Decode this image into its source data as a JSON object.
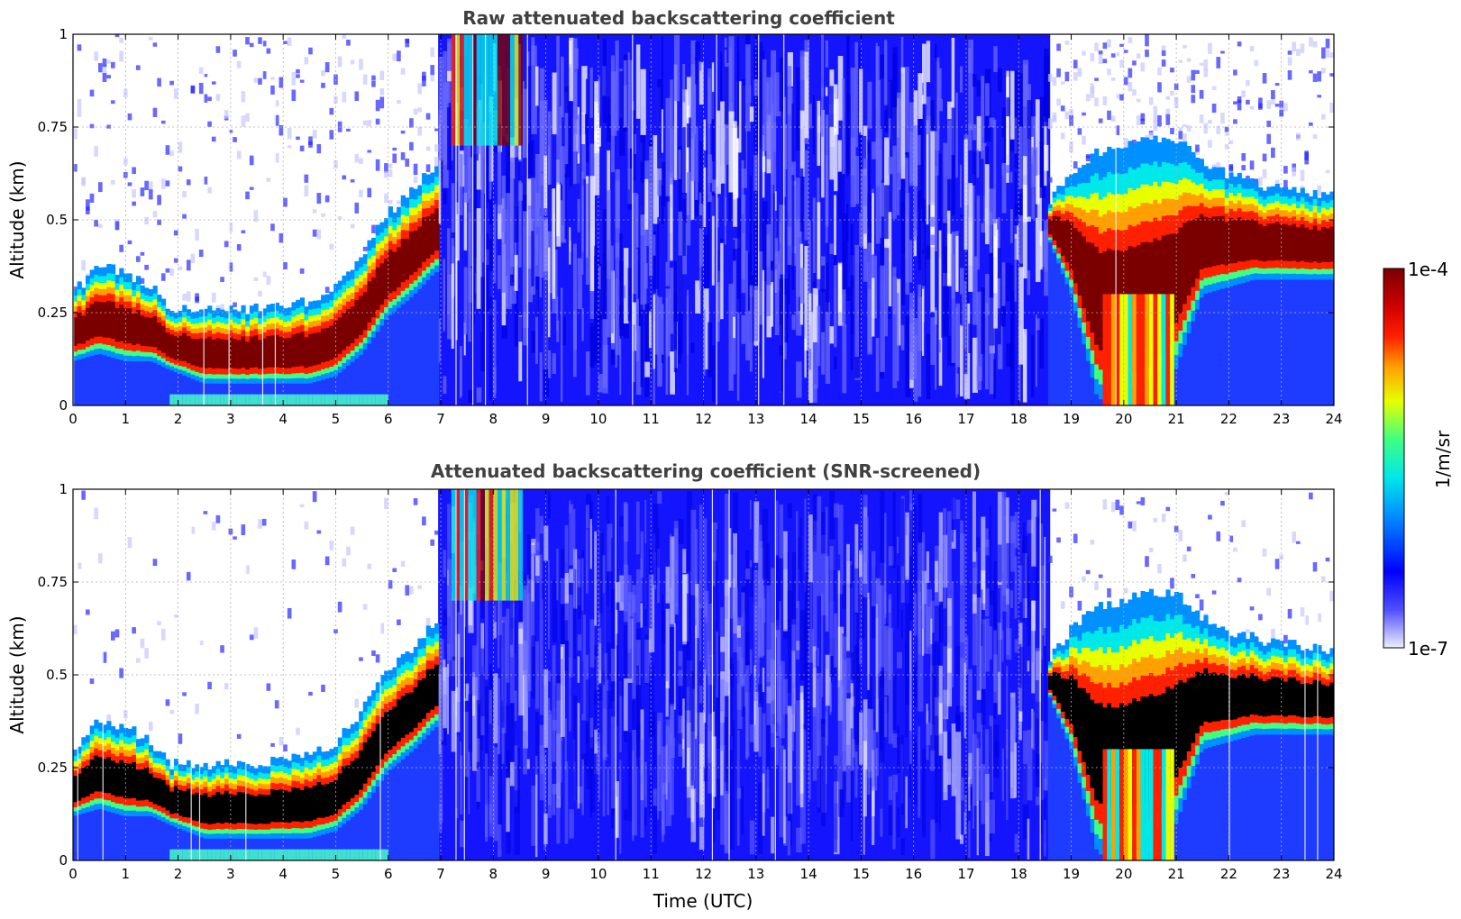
{
  "chart_data": [
    {
      "type": "heatmap",
      "title": "Raw attenuated backscattering coefficient",
      "xlabel": "",
      "ylabel": "Altitude (km)",
      "xlim": [
        0,
        24
      ],
      "ylim": [
        0,
        1
      ],
      "x_ticks": [
        "0",
        "1",
        "2",
        "3",
        "4",
        "5",
        "6",
        "7",
        "8",
        "9",
        "10",
        "11",
        "12",
        "13",
        "14",
        "15",
        "16",
        "17",
        "18",
        "19",
        "20",
        "21",
        "22",
        "23",
        "24"
      ],
      "y_ticks": [
        "0",
        "0.25",
        "0.5",
        "0.75",
        "1"
      ],
      "screened": false,
      "layer_top_km": [
        [
          0.0,
          0.3
        ],
        [
          0.5,
          0.38
        ],
        [
          1.0,
          0.36
        ],
        [
          1.5,
          0.32
        ],
        [
          1.8,
          0.26
        ],
        [
          2.5,
          0.26
        ],
        [
          3.5,
          0.26
        ],
        [
          4.5,
          0.28
        ],
        [
          5.0,
          0.32
        ],
        [
          5.5,
          0.4
        ],
        [
          6.0,
          0.52
        ],
        [
          6.5,
          0.58
        ],
        [
          6.9,
          0.65
        ],
        [
          18.6,
          0.55
        ],
        [
          19.0,
          0.62
        ],
        [
          19.5,
          0.68
        ],
        [
          20.0,
          0.7
        ],
        [
          20.5,
          0.72
        ],
        [
          21.0,
          0.72
        ],
        [
          21.5,
          0.65
        ],
        [
          22.0,
          0.62
        ],
        [
          22.5,
          0.6
        ],
        [
          23.0,
          0.58
        ],
        [
          23.5,
          0.58
        ],
        [
          24.0,
          0.56
        ]
      ],
      "layer_bottom_km": [
        [
          0.0,
          0.12
        ],
        [
          0.5,
          0.14
        ],
        [
          1.0,
          0.12
        ],
        [
          1.5,
          0.12
        ],
        [
          1.8,
          0.1
        ],
        [
          2.5,
          0.06
        ],
        [
          3.5,
          0.06
        ],
        [
          4.5,
          0.06
        ],
        [
          5.0,
          0.08
        ],
        [
          5.5,
          0.14
        ],
        [
          6.0,
          0.24
        ],
        [
          6.5,
          0.3
        ],
        [
          6.9,
          0.36
        ],
        [
          18.6,
          0.44
        ],
        [
          19.0,
          0.3
        ],
        [
          19.5,
          0.02
        ],
        [
          20.0,
          0.0
        ],
        [
          20.5,
          0.02
        ],
        [
          21.0,
          0.1
        ],
        [
          21.5,
          0.3
        ],
        [
          22.0,
          0.32
        ],
        [
          22.5,
          0.34
        ],
        [
          23.0,
          0.34
        ],
        [
          23.5,
          0.34
        ],
        [
          24.0,
          0.34
        ]
      ]
    },
    {
      "type": "heatmap",
      "title": "Attenuated backscattering coefficient (SNR-screened)",
      "xlabel": "Time (UTC)",
      "ylabel": "Altitude (km)",
      "xlim": [
        0,
        24
      ],
      "ylim": [
        0,
        1
      ],
      "x_ticks": [
        "0",
        "1",
        "2",
        "3",
        "4",
        "5",
        "6",
        "7",
        "8",
        "9",
        "10",
        "11",
        "12",
        "13",
        "14",
        "15",
        "16",
        "17",
        "18",
        "19",
        "20",
        "21",
        "22",
        "23",
        "24"
      ],
      "y_ticks": [
        "0",
        "0.25",
        "0.5",
        "0.75",
        "1"
      ],
      "screened": true,
      "saturation_color": "#000000"
    }
  ],
  "colorbar": {
    "label": "1/m/sr",
    "max_label": "1e-4",
    "min_label": "1e-7",
    "stops": [
      "#eeeeff",
      "#5050ff",
      "#0000ff",
      "#0090ff",
      "#00e8e8",
      "#40ff80",
      "#e8ff00",
      "#ffa000",
      "#ff2000",
      "#d00000",
      "#7a0000"
    ]
  }
}
